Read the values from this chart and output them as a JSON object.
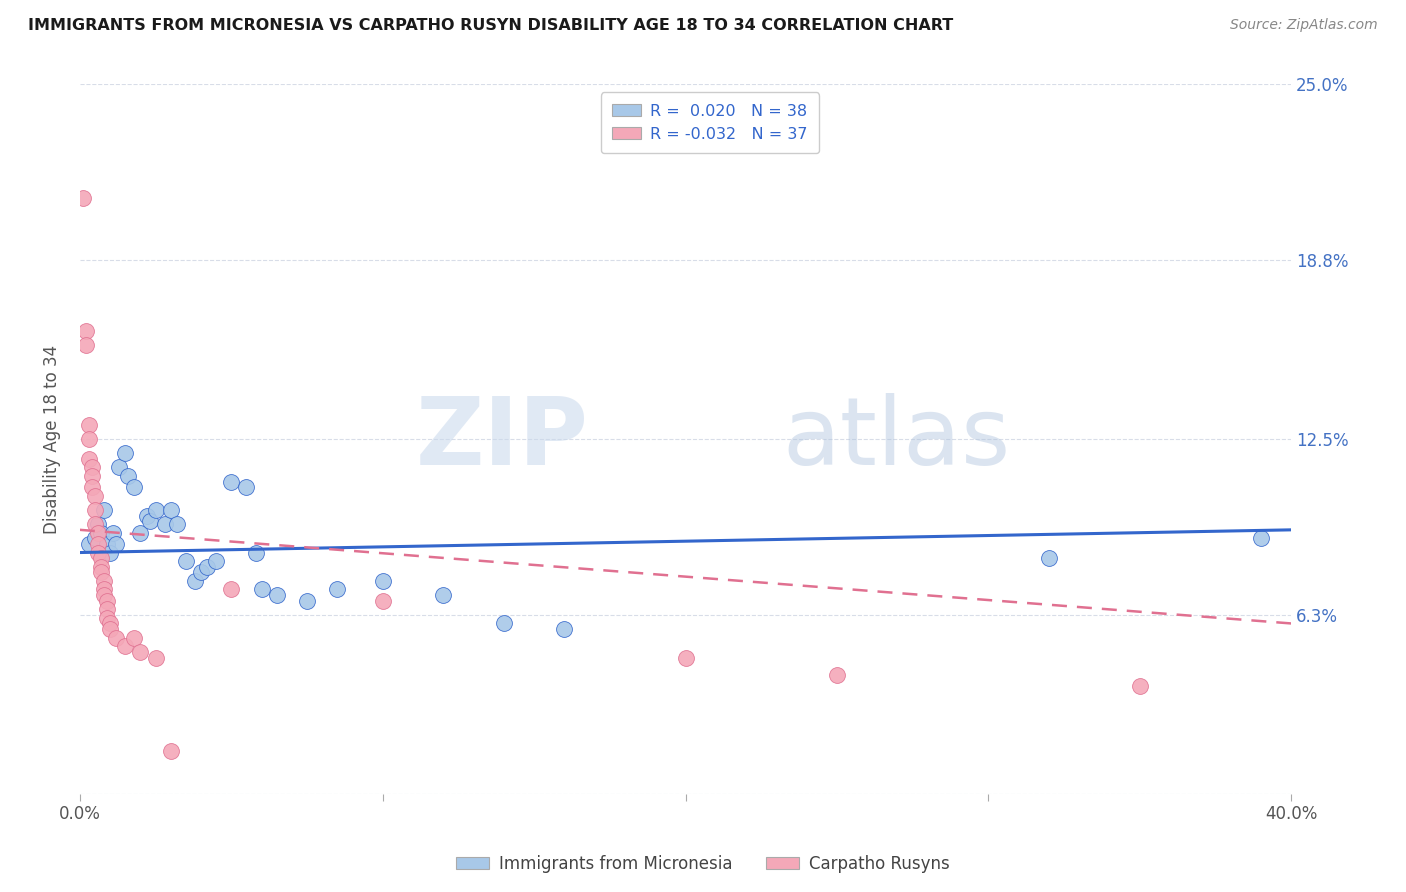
{
  "title": "IMMIGRANTS FROM MICRONESIA VS CARPATHO RUSYN DISABILITY AGE 18 TO 34 CORRELATION CHART",
  "source": "Source: ZipAtlas.com",
  "ylabel_label": "Disability Age 18 to 34",
  "ylim": [
    0.0,
    0.25
  ],
  "xlim": [
    0.0,
    0.4
  ],
  "legend_r_blue": "R =  0.020",
  "legend_n_blue": "N = 38",
  "legend_r_pink": "R = -0.032",
  "legend_n_pink": "N = 37",
  "color_blue": "#a8c8e8",
  "color_pink": "#f4a8b8",
  "line_blue": "#3366cc",
  "line_pink": "#e07090",
  "watermark_zip": "ZIP",
  "watermark_atlas": "atlas",
  "grid_color": "#d8dde8",
  "bg_color": "#ffffff",
  "scatter_blue": [
    [
      0.003,
      0.088
    ],
    [
      0.005,
      0.09
    ],
    [
      0.006,
      0.095
    ],
    [
      0.007,
      0.092
    ],
    [
      0.008,
      0.1
    ],
    [
      0.009,
      0.088
    ],
    [
      0.01,
      0.085
    ],
    [
      0.011,
      0.092
    ],
    [
      0.012,
      0.088
    ],
    [
      0.013,
      0.115
    ],
    [
      0.015,
      0.12
    ],
    [
      0.016,
      0.112
    ],
    [
      0.018,
      0.108
    ],
    [
      0.02,
      0.092
    ],
    [
      0.022,
      0.098
    ],
    [
      0.023,
      0.096
    ],
    [
      0.025,
      0.1
    ],
    [
      0.028,
      0.095
    ],
    [
      0.03,
      0.1
    ],
    [
      0.032,
      0.095
    ],
    [
      0.035,
      0.082
    ],
    [
      0.038,
      0.075
    ],
    [
      0.04,
      0.078
    ],
    [
      0.042,
      0.08
    ],
    [
      0.045,
      0.082
    ],
    [
      0.05,
      0.11
    ],
    [
      0.055,
      0.108
    ],
    [
      0.058,
      0.085
    ],
    [
      0.06,
      0.072
    ],
    [
      0.065,
      0.07
    ],
    [
      0.075,
      0.068
    ],
    [
      0.085,
      0.072
    ],
    [
      0.1,
      0.075
    ],
    [
      0.12,
      0.07
    ],
    [
      0.14,
      0.06
    ],
    [
      0.16,
      0.058
    ],
    [
      0.32,
      0.083
    ],
    [
      0.39,
      0.09
    ]
  ],
  "scatter_pink": [
    [
      0.001,
      0.21
    ],
    [
      0.002,
      0.163
    ],
    [
      0.002,
      0.158
    ],
    [
      0.003,
      0.13
    ],
    [
      0.003,
      0.125
    ],
    [
      0.003,
      0.118
    ],
    [
      0.004,
      0.115
    ],
    [
      0.004,
      0.112
    ],
    [
      0.004,
      0.108
    ],
    [
      0.005,
      0.105
    ],
    [
      0.005,
      0.1
    ],
    [
      0.005,
      0.095
    ],
    [
      0.006,
      0.092
    ],
    [
      0.006,
      0.088
    ],
    [
      0.006,
      0.085
    ],
    [
      0.007,
      0.083
    ],
    [
      0.007,
      0.08
    ],
    [
      0.007,
      0.078
    ],
    [
      0.008,
      0.075
    ],
    [
      0.008,
      0.072
    ],
    [
      0.008,
      0.07
    ],
    [
      0.009,
      0.068
    ],
    [
      0.009,
      0.065
    ],
    [
      0.009,
      0.062
    ],
    [
      0.01,
      0.06
    ],
    [
      0.01,
      0.058
    ],
    [
      0.012,
      0.055
    ],
    [
      0.015,
      0.052
    ],
    [
      0.018,
      0.055
    ],
    [
      0.02,
      0.05
    ],
    [
      0.025,
      0.048
    ],
    [
      0.03,
      0.015
    ],
    [
      0.05,
      0.072
    ],
    [
      0.1,
      0.068
    ],
    [
      0.2,
      0.048
    ],
    [
      0.25,
      0.042
    ],
    [
      0.35,
      0.038
    ]
  ],
  "blue_line_x": [
    0.0,
    0.4
  ],
  "blue_line_y": [
    0.085,
    0.093
  ],
  "pink_line_x": [
    0.0,
    0.4
  ],
  "pink_line_y": [
    0.093,
    0.06
  ]
}
